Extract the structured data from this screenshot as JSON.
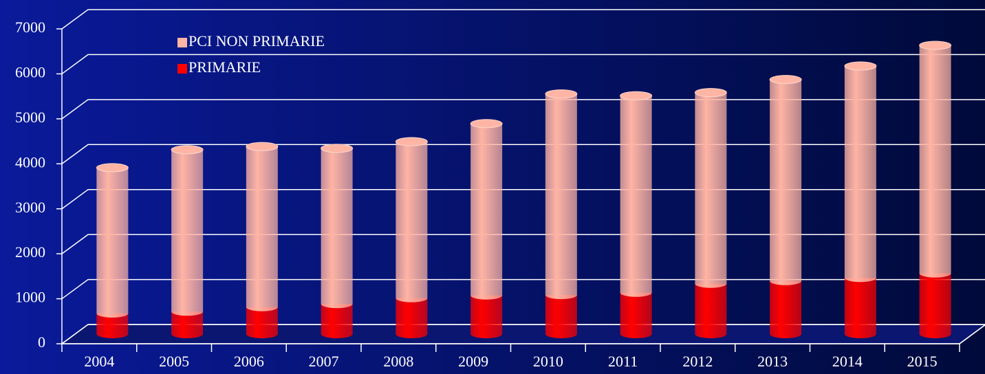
{
  "chart_data": {
    "type": "bar3d_stacked",
    "categories": [
      "2004",
      "2005",
      "2006",
      "2007",
      "2008",
      "2009",
      "2010",
      "2011",
      "2012",
      "2013",
      "2014",
      "2015"
    ],
    "series": [
      {
        "name": "PRIMARIE",
        "color": "#ff0000",
        "values": [
          460,
          500,
          600,
          670,
          800,
          860,
          870,
          920,
          1120,
          1180,
          1250,
          1350
        ]
      },
      {
        "name": "PCI NON PRIMARIE",
        "color": "#ffb4a4",
        "values": [
          3240,
          3600,
          3570,
          3460,
          3480,
          3820,
          4470,
          4380,
          4250,
          4480,
          4710,
          5070
        ]
      }
    ],
    "ylim": [
      0,
      7000
    ],
    "yticks": [
      0,
      1000,
      2000,
      3000,
      4000,
      5000,
      6000,
      7000
    ],
    "grid": true,
    "legend": "upper left"
  }
}
